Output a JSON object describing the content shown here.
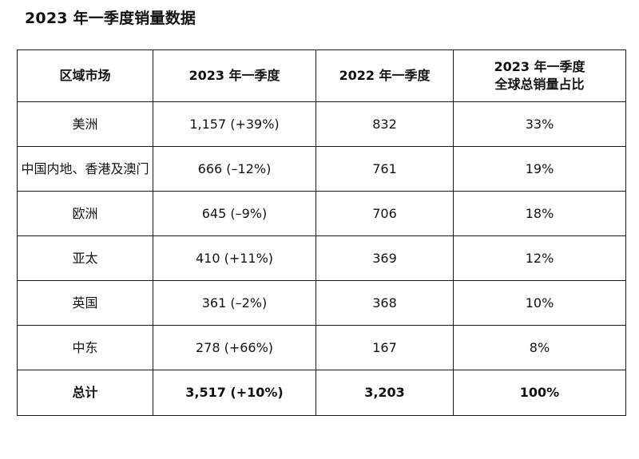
{
  "title": "2023 年一季度销量数据",
  "table": {
    "headers": {
      "region": "区域市场",
      "q1_2023": "2023 年一季度",
      "q1_2022": "2022 年一季度",
      "share_line1": "2023 年一季度",
      "share_line2": "全球总销量占比"
    },
    "rows": [
      {
        "region": "美洲",
        "q1_2023": "1,157 (+39%)",
        "q1_2022": "832",
        "share": "33%"
      },
      {
        "region": "中国内地、香港及澳门",
        "q1_2023": "666 (–12%)",
        "q1_2022": "761",
        "share": "19%"
      },
      {
        "region": "欧洲",
        "q1_2023": "645 (–9%)",
        "q1_2022": "706",
        "share": "18%"
      },
      {
        "region": "亚太",
        "q1_2023": "410 (+11%)",
        "q1_2022": "369",
        "share": "12%"
      },
      {
        "region": "英国",
        "q1_2023": "361 (–2%)",
        "q1_2022": "368",
        "share": "10%"
      },
      {
        "region": "中东",
        "q1_2023": "278 (+66%)",
        "q1_2022": "167",
        "share": "8%"
      }
    ],
    "total": {
      "region": "总计",
      "q1_2023": "3,517 (+10%)",
      "q1_2022": "3,203",
      "share": "100%"
    }
  }
}
